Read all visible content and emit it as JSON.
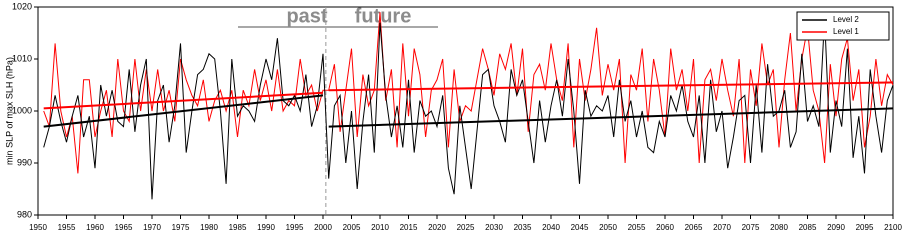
{
  "chart_data": {
    "type": "line",
    "y_label": "min SLP of max SLH (hPa)",
    "annotations": [
      "past",
      "future"
    ],
    "divider": 2000.5,
    "x": [
      1951,
      1952,
      1953,
      1954,
      1955,
      1956,
      1957,
      1958,
      1959,
      1960,
      1961,
      1962,
      1963,
      1964,
      1965,
      1966,
      1967,
      1968,
      1969,
      1970,
      1971,
      1972,
      1973,
      1974,
      1975,
      1976,
      1977,
      1978,
      1979,
      1980,
      1981,
      1982,
      1983,
      1984,
      1985,
      1986,
      1987,
      1988,
      1989,
      1990,
      1991,
      1992,
      1993,
      1994,
      1995,
      1996,
      1997,
      1998,
      1999,
      2000,
      2001,
      2002,
      2003,
      2004,
      2005,
      2006,
      2007,
      2008,
      2009,
      2010,
      2011,
      2012,
      2013,
      2014,
      2015,
      2016,
      2017,
      2018,
      2019,
      2020,
      2021,
      2022,
      2023,
      2024,
      2025,
      2026,
      2027,
      2028,
      2029,
      2030,
      2031,
      2032,
      2033,
      2034,
      2035,
      2036,
      2037,
      2038,
      2039,
      2040,
      2041,
      2042,
      2043,
      2044,
      2045,
      2046,
      2047,
      2048,
      2049,
      2050,
      2051,
      2052,
      2053,
      2054,
      2055,
      2056,
      2057,
      2058,
      2059,
      2060,
      2061,
      2062,
      2063,
      2064,
      2065,
      2066,
      2067,
      2068,
      2069,
      2070,
      2071,
      2072,
      2073,
      2074,
      2075,
      2076,
      2077,
      2078,
      2079,
      2080,
      2081,
      2082,
      2083,
      2084,
      2085,
      2086,
      2087,
      2088,
      2089,
      2090,
      2091,
      2092,
      2093,
      2094,
      2095,
      2096,
      2097,
      2098,
      2099,
      2100
    ],
    "series": [
      {
        "name": "Level 2",
        "color": "#000000",
        "values": [
          993,
          997,
          1003,
          998,
          994,
          999,
          1003,
          995,
          999,
          989,
          1005,
          999,
          1004,
          998,
          997,
          1008,
          996,
          1005,
          1010,
          983,
          1002,
          1005,
          994,
          1001,
          1013,
          992,
          1000,
          1007,
          1008,
          1011,
          1010,
          1000,
          986,
          1010,
          999,
          1001,
          1000,
          998,
          1005,
          1010,
          1006,
          1014,
          1002,
          1001,
          1003,
          1000,
          1007,
          997,
          1001,
          1011,
          987,
          1001,
          1003,
          990,
          1000,
          985,
          998,
          1007,
          992,
          1017,
          1003,
          995,
          1001,
          993,
          1006,
          992,
          1002,
          999,
          1000,
          997,
          1003,
          989,
          984,
          1001,
          993,
          985,
          996,
          1007,
          1008,
          1001,
          998,
          994,
          1008,
          1003,
          1006,
          998,
          990,
          1002,
          994,
          1001,
          1006,
          999,
          1010,
          1000,
          986,
          1004,
          999,
          1001,
          1000,
          1003,
          995,
          1006,
          998,
          1002,
          995,
          1000,
          993,
          992,
          998,
          995,
          1003,
          1000,
          1005,
          998,
          995,
          1003,
          990,
          1006,
          996,
          1000,
          989,
          995,
          1002,
          1003,
          990,
          1005,
          992,
          1009,
          999,
          1000,
          1004,
          993,
          996,
          1011,
          998,
          1001,
          997,
          1018,
          992,
          1002,
          997,
          1012,
          991,
          999,
          988,
          1008,
          999,
          992,
          1002,
          1005
        ]
      },
      {
        "name": "Level 1",
        "color": "#ff0000",
        "values": [
          1000,
          997,
          1013,
          1000,
          995,
          999,
          988,
          1006,
          1006,
          995,
          1000,
          1004,
          995,
          1010,
          1000,
          998,
          1010,
          1000,
          1008,
          1000,
          1008,
          1000,
          1004,
          998,
          1010,
          1006,
          1003,
          1001,
          1006,
          998,
          1002,
          1004,
          1000,
          1004,
          995,
          1004,
          1001,
          1008,
          1002,
          1006,
          1000,
          1008,
          1000,
          1002,
          1001,
          1010,
          1003,
          1005,
          1000,
          1004,
          1004,
          1009,
          996,
          1004,
          1012,
          995,
          1007,
          1001,
          1004,
          1019,
          1002,
          1008,
          993,
          1013,
          999,
          1012,
          1007,
          995,
          1004,
          1006,
          1010,
          993,
          1008,
          998,
          1001,
          1000,
          1006,
          1012,
          1008,
          1003,
          1011,
          1008,
          1013,
          1003,
          1012,
          996,
          1007,
          1009,
          1004,
          1013,
          1006,
          1002,
          1013,
          993,
          1010,
          1002,
          1008,
          1016,
          1003,
          1009,
          1004,
          1010,
          990,
          1007,
          1004,
          1012,
          998,
          1010,
          1004,
          995,
          1012,
          1004,
          1008,
          1000,
          1010,
          990,
          1006,
          1008,
          1002,
          1010,
          1004,
          999,
          1010,
          990,
          1008,
          1001,
          1013,
          1005,
          1008,
          993,
          1006,
          1015,
          1000,
          1010,
          1016,
          1004,
          1000,
          990,
          1009,
          999,
          1010,
          1014,
          1002,
          1008,
          993,
          999,
          1010,
          1001,
          1007,
          1005
        ]
      }
    ],
    "trends": [
      {
        "color": "#ff0000",
        "x": [
          1951,
          2000
        ],
        "values": [
          1000.5,
          1003.5
        ]
      },
      {
        "color": "#000000",
        "x": [
          1951,
          2000
        ],
        "values": [
          997,
          1003
        ]
      },
      {
        "color": "#ff0000",
        "x": [
          2001,
          2100
        ],
        "values": [
          1004,
          1005.5
        ]
      },
      {
        "color": "#000000",
        "x": [
          2001,
          2100
        ],
        "values": [
          997,
          1000.5
        ]
      }
    ],
    "xlim": [
      1950,
      2100
    ],
    "xticks": [
      1950,
      1955,
      1960,
      1965,
      1970,
      1975,
      1980,
      1985,
      1990,
      1995,
      2000,
      2005,
      2010,
      2015,
      2020,
      2025,
      2030,
      2035,
      2040,
      2045,
      2050,
      2055,
      2060,
      2065,
      2070,
      2075,
      2080,
      2085,
      2090,
      2095,
      2100
    ],
    "ylim": [
      980,
      1020
    ],
    "yticks": [
      980,
      990,
      1000,
      1010,
      1020
    ],
    "legend": "upper right"
  }
}
